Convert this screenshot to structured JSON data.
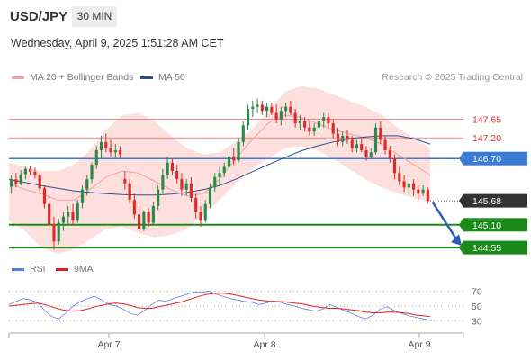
{
  "header": {
    "symbol": "USD/JPY",
    "timeframe": "30 MIN",
    "datetime": "Wednesday, April 9, 2025 1:51:28 AM CET"
  },
  "legend": {
    "ma20_label": "MA 20 + Bollinger Bands",
    "ma50_label": "MA 50",
    "research": "Research © 2025 Trading Central",
    "ma20_color": "#f4a09c",
    "ma50_color": "#2e4d8f"
  },
  "rsi_legend": {
    "rsi_label": "RSI",
    "ma_label": "9MA",
    "rsi_color": "#5b7fdb",
    "ma_color": "#e02020"
  },
  "colors": {
    "resistance": "#f08a8a",
    "pivot": "#3a7bd5",
    "support": "#1a8a1a",
    "last": "#333333",
    "band": "#fde0de",
    "up": "#2b8a4a",
    "down": "#e02a2a"
  },
  "chart_data": [
    {
      "type": "candlestick",
      "title": "USD/JPY 30 MIN",
      "x_ticks": [
        "Apr 7",
        "Apr 8",
        "Apr 9"
      ],
      "ylim": [
        144.4,
        148.4
      ],
      "levels": [
        {
          "value": 147.65,
          "label": "147.65",
          "kind": "resistance"
        },
        {
          "value": 147.2,
          "label": "147.20",
          "kind": "resistance"
        },
        {
          "value": 146.7,
          "label": "146.70",
          "kind": "pivot"
        },
        {
          "value": 145.68,
          "label": "145.68",
          "kind": "last"
        },
        {
          "value": 145.1,
          "label": "145.10",
          "kind": "support"
        },
        {
          "value": 144.55,
          "label": "144.55",
          "kind": "support"
        }
      ],
      "ohlc": [
        [
          146.02,
          146.3,
          145.85,
          146.2
        ],
        [
          146.2,
          146.35,
          146.0,
          146.1
        ],
        [
          146.1,
          146.42,
          146.05,
          146.32
        ],
        [
          146.32,
          146.5,
          146.2,
          146.45
        ],
        [
          146.45,
          146.52,
          146.3,
          146.38
        ],
        [
          146.38,
          146.48,
          146.22,
          146.3
        ],
        [
          146.3,
          146.35,
          145.9,
          145.98
        ],
        [
          145.98,
          146.05,
          145.5,
          145.6
        ],
        [
          145.6,
          145.7,
          145.02,
          145.12
        ],
        [
          145.12,
          145.3,
          144.5,
          144.7
        ],
        [
          144.7,
          145.25,
          144.62,
          145.15
        ],
        [
          145.15,
          145.4,
          144.95,
          145.3
        ],
        [
          145.3,
          145.55,
          145.1,
          145.4
        ],
        [
          145.4,
          145.6,
          145.1,
          145.2
        ],
        [
          145.2,
          145.7,
          145.15,
          145.62
        ],
        [
          145.62,
          146.05,
          145.5,
          145.95
        ],
        [
          145.95,
          146.3,
          145.8,
          146.2
        ],
        [
          146.2,
          146.6,
          146.1,
          146.55
        ],
        [
          146.55,
          147.0,
          146.45,
          146.9
        ],
        [
          146.9,
          147.25,
          146.7,
          147.1
        ],
        [
          147.1,
          147.3,
          146.85,
          146.95
        ],
        [
          146.95,
          147.15,
          146.75,
          146.85
        ],
        [
          146.85,
          147.05,
          146.72,
          146.9
        ],
        [
          146.9,
          147.0,
          146.7,
          146.8
        ],
        [
          146.2,
          146.4,
          145.95,
          146.1
        ],
        [
          146.1,
          146.2,
          145.6,
          145.7
        ],
        [
          145.7,
          145.85,
          145.25,
          145.35
        ],
        [
          145.35,
          145.55,
          144.85,
          145.0
        ],
        [
          145.0,
          145.45,
          144.95,
          145.4
        ],
        [
          145.4,
          145.5,
          145.05,
          145.15
        ],
        [
          145.15,
          145.65,
          145.1,
          145.55
        ],
        [
          145.55,
          146.05,
          145.45,
          145.95
        ],
        [
          145.95,
          146.45,
          145.85,
          146.3
        ],
        [
          146.3,
          146.75,
          146.2,
          146.6
        ],
        [
          146.6,
          146.7,
          146.3,
          146.4
        ],
        [
          146.4,
          146.55,
          146.1,
          146.2
        ],
        [
          146.2,
          146.35,
          145.8,
          145.95
        ],
        [
          145.95,
          146.2,
          145.8,
          146.1
        ],
        [
          146.1,
          146.25,
          145.65,
          145.75
        ],
        [
          145.75,
          145.85,
          145.25,
          145.4
        ],
        [
          145.4,
          145.55,
          145.05,
          145.2
        ],
        [
          145.2,
          145.7,
          145.15,
          145.6
        ],
        [
          145.6,
          146.1,
          145.5,
          146.0
        ],
        [
          146.0,
          146.35,
          145.9,
          146.25
        ],
        [
          146.25,
          146.5,
          146.05,
          146.35
        ],
        [
          146.35,
          146.6,
          146.25,
          146.5
        ],
        [
          146.5,
          146.85,
          146.4,
          146.75
        ],
        [
          146.75,
          146.95,
          146.55,
          146.65
        ],
        [
          146.65,
          147.2,
          146.6,
          147.1
        ],
        [
          147.1,
          147.6,
          147.0,
          147.5
        ],
        [
          147.5,
          148.0,
          147.4,
          147.9
        ],
        [
          147.9,
          148.1,
          147.7,
          147.95
        ],
        [
          147.95,
          148.15,
          147.8,
          148.0
        ],
        [
          148.0,
          148.1,
          147.75,
          147.85
        ],
        [
          147.85,
          148.05,
          147.7,
          147.95
        ],
        [
          147.95,
          148.05,
          147.75,
          147.8
        ],
        [
          147.8,
          148.0,
          147.55,
          147.65
        ],
        [
          147.65,
          147.95,
          147.5,
          147.85
        ],
        [
          147.85,
          148.05,
          147.7,
          147.95
        ],
        [
          147.95,
          148.1,
          147.75,
          147.8
        ],
        [
          147.8,
          147.9,
          147.45,
          147.55
        ],
        [
          147.55,
          147.75,
          147.4,
          147.6
        ],
        [
          147.6,
          147.7,
          147.35,
          147.45
        ],
        [
          147.45,
          147.6,
          147.25,
          147.35
        ],
        [
          147.35,
          147.55,
          147.25,
          147.45
        ],
        [
          147.45,
          147.7,
          147.35,
          147.6
        ],
        [
          147.6,
          147.8,
          147.45,
          147.7
        ],
        [
          147.7,
          147.8,
          147.45,
          147.55
        ],
        [
          147.55,
          147.65,
          147.2,
          147.3
        ],
        [
          147.3,
          147.45,
          147.0,
          147.1
        ],
        [
          147.1,
          147.35,
          147.0,
          147.25
        ],
        [
          147.25,
          147.4,
          147.05,
          147.15
        ],
        [
          147.15,
          147.25,
          146.85,
          146.95
        ],
        [
          146.95,
          147.15,
          146.85,
          147.05
        ],
        [
          147.05,
          147.2,
          146.85,
          146.9
        ],
        [
          146.9,
          147.0,
          146.65,
          146.75
        ],
        [
          146.75,
          146.95,
          146.7,
          146.85
        ],
        [
          146.85,
          147.55,
          146.8,
          147.45
        ],
        [
          147.45,
          147.6,
          147.05,
          147.15
        ],
        [
          147.15,
          147.25,
          146.8,
          146.9
        ],
        [
          146.9,
          147.0,
          146.6,
          146.7
        ],
        [
          146.7,
          146.8,
          146.2,
          146.35
        ],
        [
          146.35,
          146.5,
          146.05,
          146.15
        ],
        [
          146.15,
          146.3,
          145.9,
          146.0
        ],
        [
          146.0,
          146.2,
          145.85,
          146.1
        ],
        [
          146.1,
          146.2,
          145.8,
          145.95
        ],
        [
          145.95,
          146.05,
          145.7,
          145.85
        ],
        [
          145.85,
          146.05,
          145.8,
          145.95
        ],
        [
          145.95,
          146.0,
          145.6,
          145.68
        ]
      ],
      "bollinger": {
        "upper": [
          146.6,
          146.5,
          146.4,
          146.4,
          146.55,
          146.9,
          147.4,
          147.75,
          147.8,
          147.6,
          147.25,
          146.95,
          146.8,
          146.85,
          147.1,
          147.4,
          147.85,
          148.3,
          148.45,
          148.4,
          148.25,
          148.1,
          147.95,
          147.75,
          147.45,
          147.2,
          146.95
        ],
        "lower": [
          145.2,
          144.95,
          144.55,
          144.4,
          144.5,
          144.75,
          145.0,
          145.05,
          144.9,
          144.8,
          144.85,
          145.0,
          145.35,
          145.7,
          146.1,
          146.45,
          146.7,
          146.95,
          147.0,
          146.9,
          146.7,
          146.45,
          146.2,
          146.0,
          145.85,
          145.75,
          145.65
        ]
      },
      "ma20": [
        146.1,
        145.95,
        145.85,
        145.7,
        145.7,
        145.95,
        146.25,
        146.4,
        146.35,
        146.15,
        145.95,
        145.8,
        145.85,
        146.2,
        146.7,
        147.15,
        147.55,
        147.75,
        147.7,
        147.55,
        147.4,
        147.3,
        147.2,
        147.05,
        146.8,
        146.55,
        146.3
      ],
      "ma50": [
        146.2,
        146.12,
        146.05,
        145.98,
        145.92,
        145.88,
        145.85,
        145.83,
        145.82,
        145.82,
        145.84,
        145.88,
        145.95,
        146.05,
        146.2,
        146.38,
        146.55,
        146.72,
        146.88,
        147.0,
        147.1,
        147.18,
        147.22,
        147.25,
        147.25,
        147.18,
        147.05
      ],
      "forecast": {
        "from": 145.68,
        "to": 144.55
      }
    },
    {
      "type": "line",
      "title": "RSI",
      "levels": [
        70,
        50,
        30
      ],
      "ylim": [
        20,
        80
      ],
      "series": [
        {
          "name": "RSI",
          "values": [
            52,
            56,
            60,
            58,
            55,
            44,
            36,
            33,
            41,
            50,
            56,
            60,
            63,
            58,
            52,
            50,
            46,
            40,
            38,
            44,
            52,
            58,
            56,
            60,
            63,
            66,
            69,
            68,
            70,
            66,
            63,
            60,
            58,
            56,
            55,
            52,
            54,
            57,
            55,
            52,
            50,
            47,
            45,
            43,
            46,
            52,
            48,
            44,
            40,
            36,
            33,
            38,
            46,
            49,
            44,
            40,
            37,
            35,
            33,
            31
          ]
        },
        {
          "name": "9MA",
          "values": [
            50,
            51,
            52,
            53,
            54,
            52,
            49,
            46,
            44,
            43,
            44,
            46,
            49,
            51,
            53,
            54,
            53,
            51,
            48,
            47,
            47,
            49,
            51,
            53,
            55,
            58,
            61,
            64,
            66,
            67,
            67,
            66,
            64,
            62,
            60,
            58,
            57,
            56,
            56,
            55,
            54,
            53,
            51,
            49,
            48,
            47,
            47,
            46,
            45,
            44,
            42,
            41,
            41,
            42,
            42,
            41,
            40,
            38,
            37,
            36
          ]
        }
      ]
    }
  ]
}
